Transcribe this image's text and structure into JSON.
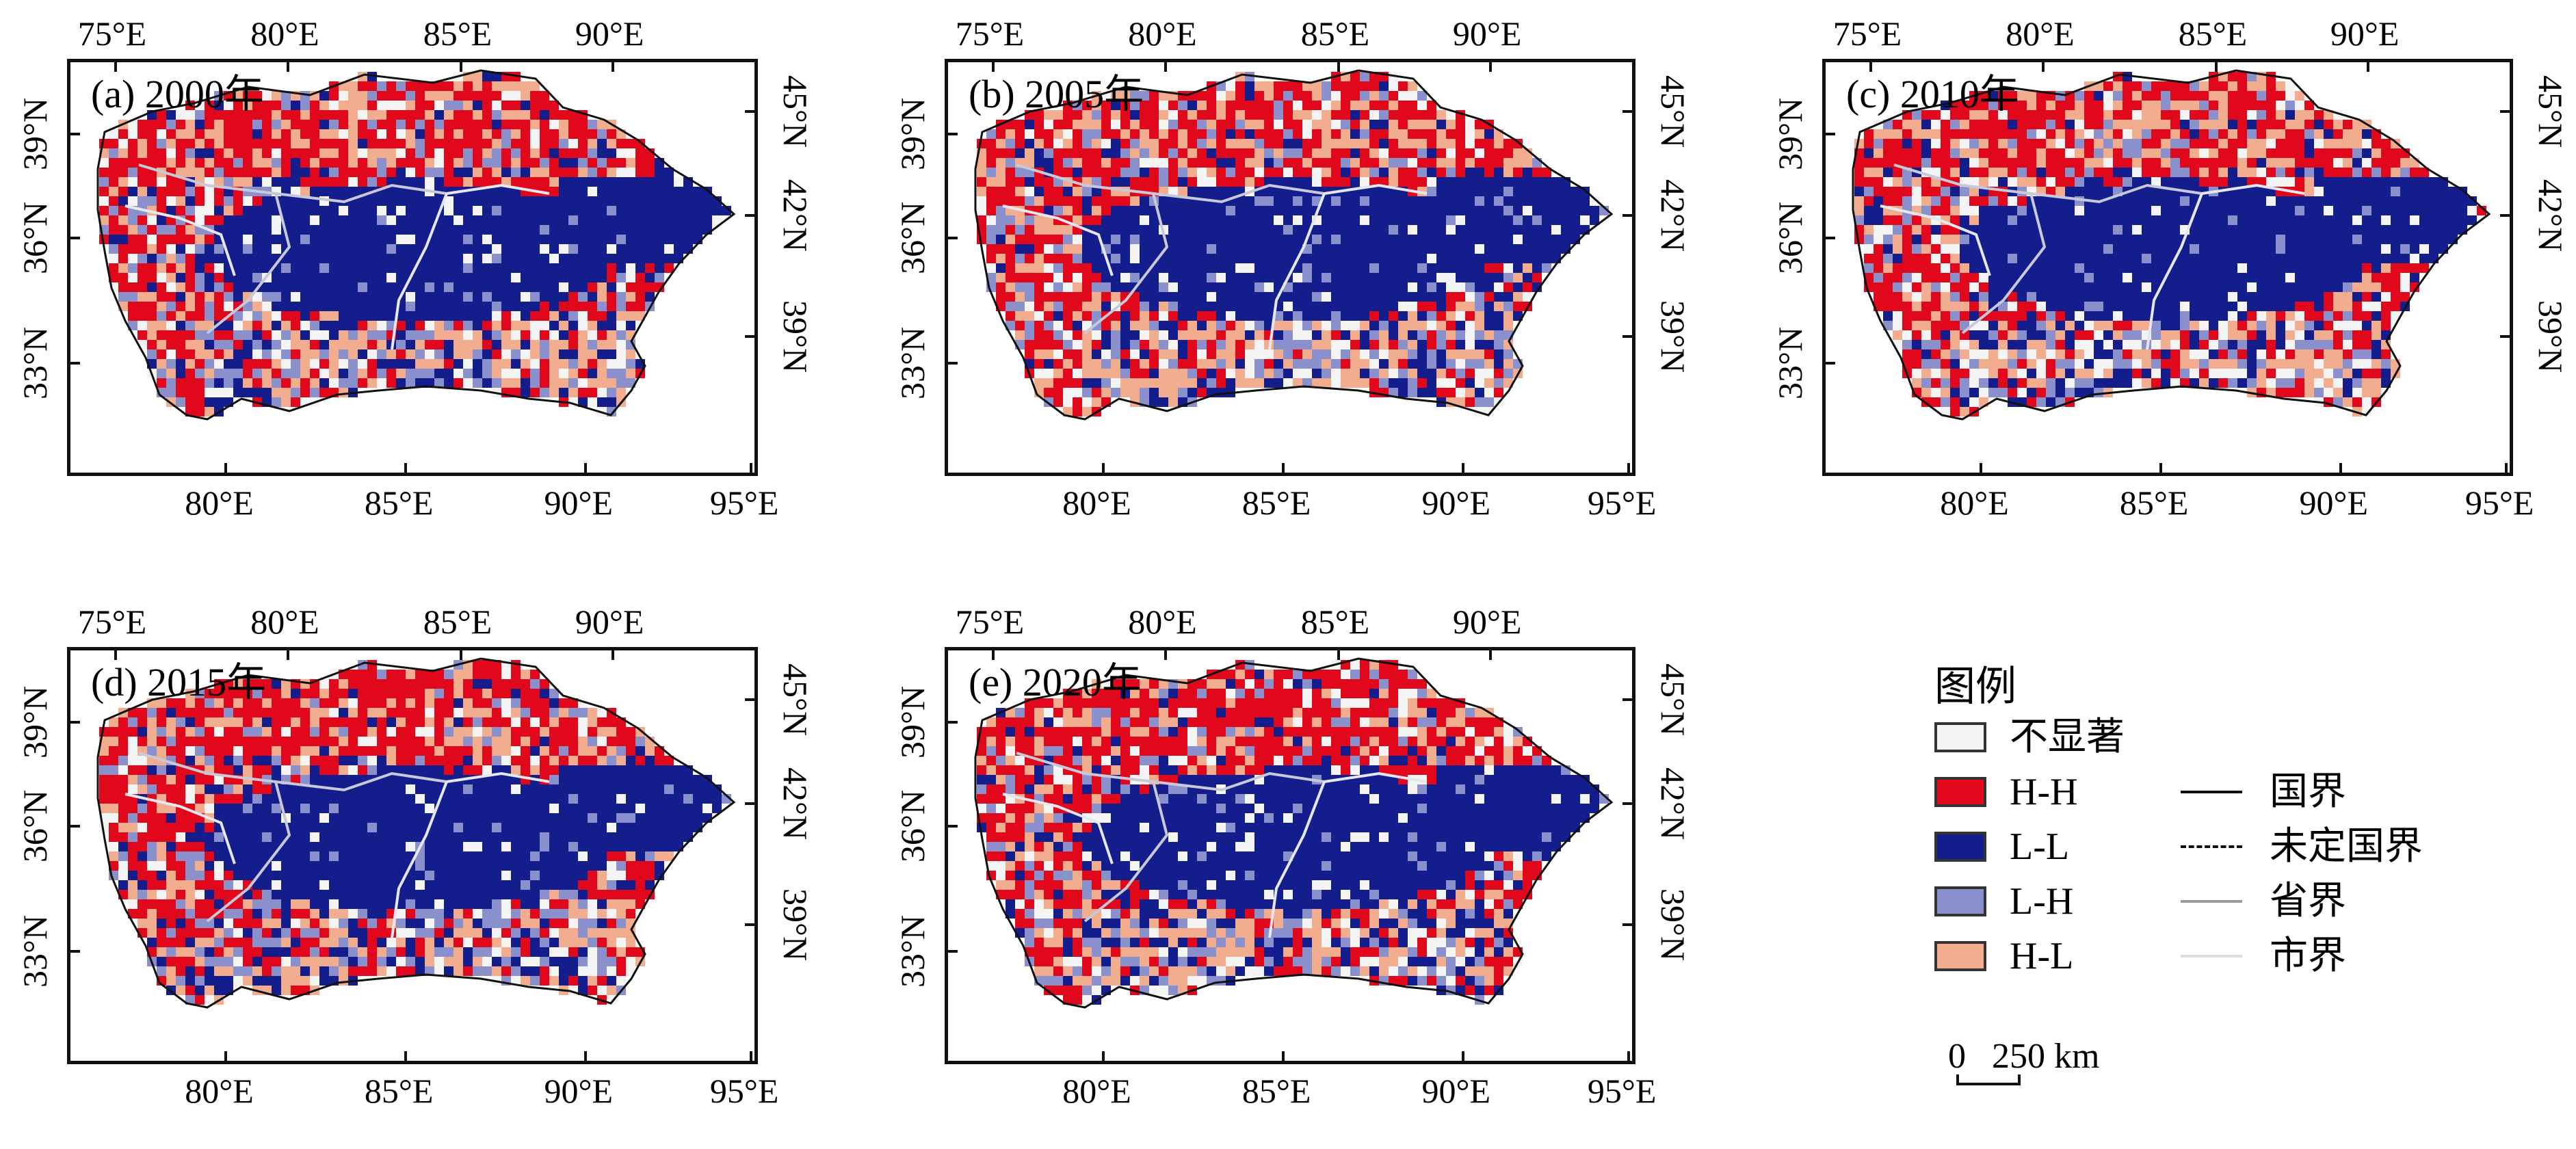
{
  "panels": [
    {
      "title": "(a) 2000年",
      "variant": 0
    },
    {
      "title": "(b) 2005年",
      "variant": 1
    },
    {
      "title": "(c) 2010年",
      "variant": 2
    },
    {
      "title": "(d) 2015年",
      "variant": 3
    },
    {
      "title": "(e) 2020年",
      "variant": 4
    }
  ],
  "axes": {
    "top_lon": [
      "75°E",
      "80°E",
      "85°E",
      "90°E"
    ],
    "bottom_lon": [
      "80°E",
      "85°E",
      "90°E",
      "95°E"
    ],
    "left_lat": [
      "39°N",
      "36°N",
      "33°N"
    ],
    "right_lat": [
      "45°N",
      "42°N",
      "39°N"
    ]
  },
  "legend": {
    "title": "图例",
    "classes": [
      {
        "label": "不显著",
        "color": "#f4f4f4"
      },
      {
        "label": "H-H",
        "color": "#e0081a"
      },
      {
        "label": "L-L",
        "color": "#131e8c"
      },
      {
        "label": "L-H",
        "color": "#8a90cc"
      },
      {
        "label": "H-L",
        "color": "#f2ad8e"
      }
    ],
    "lines": [
      {
        "label": "国界",
        "style": "solid",
        "color": "#111111"
      },
      {
        "label": "未定国界",
        "style": "dashed",
        "color": "#111111"
      },
      {
        "label": "省界",
        "style": "solid",
        "color": "#9a9a9a"
      },
      {
        "label": "市界",
        "style": "solid",
        "color": "#dcdcdc"
      }
    ],
    "scale": {
      "zero": "0",
      "label": "250 km"
    }
  }
}
